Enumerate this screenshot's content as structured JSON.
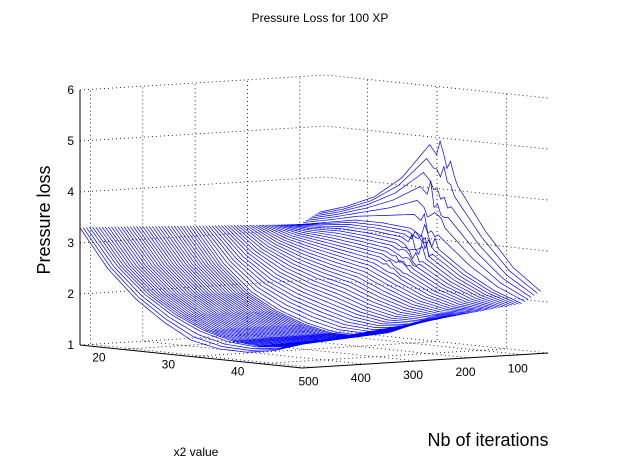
{
  "chart_data": {
    "type": "surface-3d",
    "title": "Pressure Loss for 100 XP",
    "zlabel": "Pressure loss",
    "xlabel": "x2 value",
    "ylabel": "Nb of iterations",
    "x_ticks": [
      "20",
      "30",
      "40"
    ],
    "y_ticks": [
      "100",
      "200",
      "300",
      "400",
      "500"
    ],
    "z_ticks": [
      "1",
      "2",
      "3",
      "4",
      "5",
      "6"
    ],
    "x_range": [
      14,
      46
    ],
    "y_range": [
      50,
      520
    ],
    "z_range": [
      1,
      6
    ],
    "line_color": "#0000ff",
    "grid": "on",
    "profiles": [
      {
        "iteration": 500,
        "x": [
          14,
          18,
          22,
          26,
          30,
          34,
          38,
          42,
          46
        ],
        "loss": [
          3.3,
          2.6,
          2.1,
          1.75,
          1.5,
          1.35,
          1.3,
          1.35,
          1.5
        ]
      },
      {
        "iteration": 300,
        "x": [
          14,
          18,
          22,
          26,
          30,
          34,
          38,
          42,
          46
        ],
        "loss": [
          3.2,
          2.5,
          2.0,
          1.7,
          1.5,
          1.38,
          1.38,
          1.5,
          1.75
        ]
      },
      {
        "iteration": 100,
        "x": [
          14,
          18,
          22,
          26,
          30,
          34,
          38,
          42,
          46
        ],
        "loss": [
          3.1,
          3.2,
          3.3,
          3.3,
          3.25,
          2.9,
          2.5,
          2.2,
          2.0
        ]
      },
      {
        "iteration": 50,
        "x": [
          14,
          18,
          22,
          26,
          30,
          34,
          38,
          42,
          46
        ],
        "loss": [
          3.4,
          3.6,
          3.9,
          4.5,
          5.5,
          4.6,
          3.6,
          2.8,
          2.3
        ]
      }
    ]
  }
}
